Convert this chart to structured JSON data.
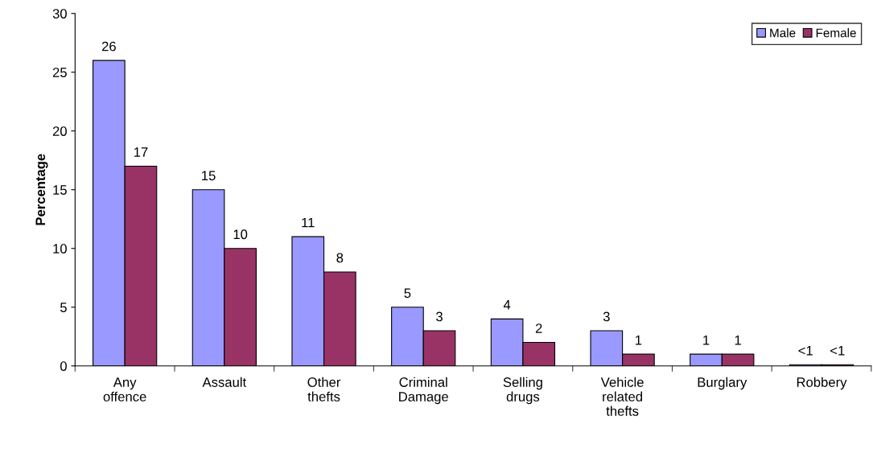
{
  "chart_data": {
    "type": "bar",
    "ylabel": "Percentage",
    "categories": [
      "Any\noffence",
      "Assault",
      "Other\nthefts",
      "Criminal\nDamage",
      "Selling\ndrugs",
      "Vehicle\nrelated\nthefts",
      "Burglary",
      "Robbery"
    ],
    "series": [
      {
        "name": "Male",
        "color": "#9999ff",
        "values": [
          26,
          15,
          11,
          5,
          4,
          3,
          1,
          0.1
        ],
        "value_labels": [
          "26",
          "15",
          "11",
          "5",
          "4",
          "3",
          "1",
          "<1"
        ]
      },
      {
        "name": "Female",
        "color": "#993366",
        "values": [
          17,
          10,
          8,
          3,
          2,
          1,
          1,
          0.1
        ],
        "value_labels": [
          "17",
          "10",
          "8",
          "3",
          "2",
          "1",
          "1",
          "<1"
        ]
      }
    ],
    "ylim": [
      0,
      30
    ],
    "yticks": [
      0,
      5,
      10,
      15,
      20,
      25,
      30
    ],
    "grid": false,
    "legend": "top right"
  }
}
